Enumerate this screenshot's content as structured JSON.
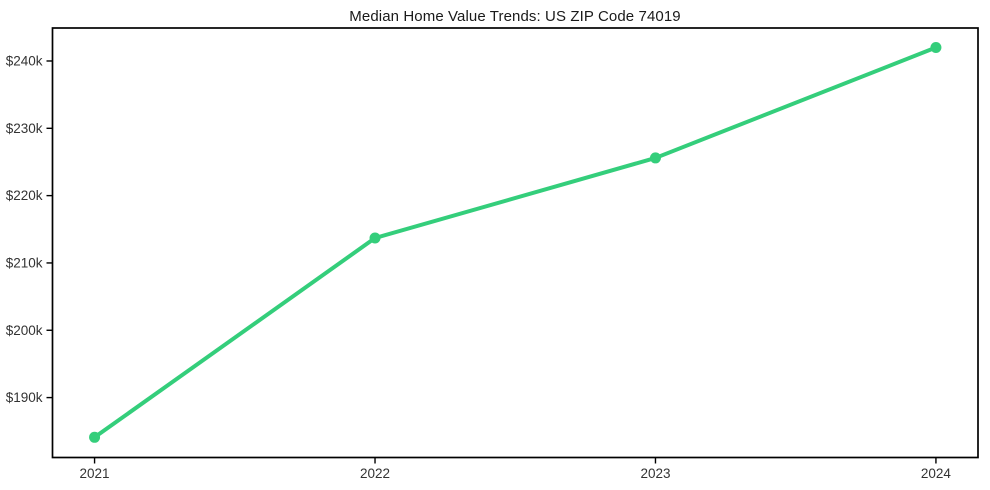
{
  "chart_data": {
    "type": "line",
    "title": "Median Home Value Trends: US ZIP Code 74019",
    "x": [
      2021,
      2022,
      2023,
      2024
    ],
    "x_tick_labels": [
      "2021",
      "2022",
      "2023",
      "2024"
    ],
    "values": [
      184.1,
      213.7,
      225.6,
      242.0
    ],
    "values_unit": "USD thousands",
    "y_ticks": [
      190,
      200,
      210,
      220,
      230,
      240
    ],
    "y_tick_labels": [
      "$190k",
      "$200k",
      "$210k",
      "$220k",
      "$230k",
      "$240k"
    ],
    "xlim": [
      2020.85,
      2024.15
    ],
    "ylim": [
      181.1,
      244.9
    ],
    "grid": false,
    "legend": "none",
    "line_color": "#34ce7b",
    "marker": "circle",
    "axis_color": "#000000"
  }
}
